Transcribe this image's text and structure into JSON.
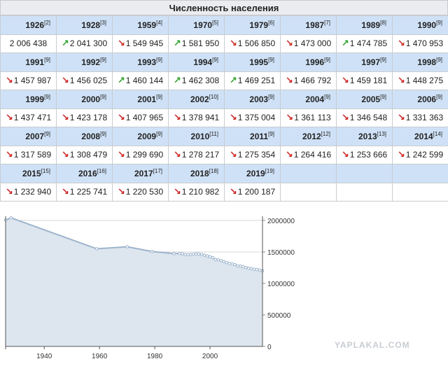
{
  "title": "Численность населения",
  "rows": [
    [
      {
        "year": "1926",
        "ref": "[2]",
        "arrow": "",
        "value": "2 006 438"
      },
      {
        "year": "1928",
        "ref": "[3]",
        "arrow": "up",
        "value": "2 041 300"
      },
      {
        "year": "1959",
        "ref": "[4]",
        "arrow": "down",
        "value": "1 549 945"
      },
      {
        "year": "1970",
        "ref": "[5]",
        "arrow": "up",
        "value": "1 581 950"
      },
      {
        "year": "1979",
        "ref": "[6]",
        "arrow": "down",
        "value": "1 506 850"
      },
      {
        "year": "1987",
        "ref": "[7]",
        "arrow": "down",
        "value": "1 473 000"
      },
      {
        "year": "1989",
        "ref": "[8]",
        "arrow": "up",
        "value": "1 474 785"
      },
      {
        "year": "1990",
        "ref": "[9]",
        "arrow": "down",
        "value": "1 470 953"
      }
    ],
    [
      {
        "year": "1991",
        "ref": "[9]",
        "arrow": "down",
        "value": "1 457 987"
      },
      {
        "year": "1992",
        "ref": "[9]",
        "arrow": "down",
        "value": "1 456 025"
      },
      {
        "year": "1993",
        "ref": "[9]",
        "arrow": "up",
        "value": "1 460 144"
      },
      {
        "year": "1994",
        "ref": "[9]",
        "arrow": "up",
        "value": "1 462 308"
      },
      {
        "year": "1995",
        "ref": "[9]",
        "arrow": "up",
        "value": "1 469 251"
      },
      {
        "year": "1996",
        "ref": "[9]",
        "arrow": "down",
        "value": "1 466 792"
      },
      {
        "year": "1997",
        "ref": "[9]",
        "arrow": "down",
        "value": "1 459 181"
      },
      {
        "year": "1998",
        "ref": "[9]",
        "arrow": "down",
        "value": "1 448 275"
      }
    ],
    [
      {
        "year": "1999",
        "ref": "[9]",
        "arrow": "down",
        "value": "1 437 471"
      },
      {
        "year": "2000",
        "ref": "[9]",
        "arrow": "down",
        "value": "1 423 178"
      },
      {
        "year": "2001",
        "ref": "[9]",
        "arrow": "down",
        "value": "1 407 965"
      },
      {
        "year": "2002",
        "ref": "[10]",
        "arrow": "down",
        "value": "1 378 941"
      },
      {
        "year": "2003",
        "ref": "[9]",
        "arrow": "down",
        "value": "1 375 004"
      },
      {
        "year": "2004",
        "ref": "[9]",
        "arrow": "down",
        "value": "1 361 113"
      },
      {
        "year": "2005",
        "ref": "[9]",
        "arrow": "down",
        "value": "1 346 548"
      },
      {
        "year": "2006",
        "ref": "[9]",
        "arrow": "down",
        "value": "1 331 363"
      }
    ],
    [
      {
        "year": "2007",
        "ref": "[9]",
        "arrow": "down",
        "value": "1 317 589"
      },
      {
        "year": "2008",
        "ref": "[9]",
        "arrow": "down",
        "value": "1 308 479"
      },
      {
        "year": "2009",
        "ref": "[9]",
        "arrow": "down",
        "value": "1 299 690"
      },
      {
        "year": "2010",
        "ref": "[11]",
        "arrow": "down",
        "value": "1 278 217"
      },
      {
        "year": "2011",
        "ref": "[9]",
        "arrow": "down",
        "value": "1 275 354"
      },
      {
        "year": "2012",
        "ref": "[12]",
        "arrow": "down",
        "value": "1 264 416"
      },
      {
        "year": "2013",
        "ref": "[13]",
        "arrow": "down",
        "value": "1 253 666"
      },
      {
        "year": "2014",
        "ref": "[14]",
        "arrow": "down",
        "value": "1 242 599"
      }
    ],
    [
      {
        "year": "2015",
        "ref": "[15]",
        "arrow": "down",
        "value": "1 232 940"
      },
      {
        "year": "2016",
        "ref": "[16]",
        "arrow": "down",
        "value": "1 225 741"
      },
      {
        "year": "2017",
        "ref": "[17]",
        "arrow": "down",
        "value": "1 220 530"
      },
      {
        "year": "2018",
        "ref": "[18]",
        "arrow": "down",
        "value": "1 210 982"
      },
      {
        "year": "2019",
        "ref": "[19]",
        "arrow": "down",
        "value": "1 200 187"
      },
      {
        "year": "",
        "ref": "",
        "arrow": "",
        "value": ""
      },
      {
        "year": "",
        "ref": "",
        "arrow": "",
        "value": ""
      },
      {
        "year": "",
        "ref": "",
        "arrow": "",
        "value": ""
      }
    ]
  ],
  "colors": {
    "header_bg": "#cfe1f6",
    "arrow_down": "#cc2222",
    "arrow_up": "#2aa02a",
    "area_fill": "#dde6ef",
    "line": "#9db4cc"
  },
  "watermark": "YAPLAKAL.COM",
  "chart_data": {
    "type": "area",
    "title": "",
    "xlabel": "",
    "ylabel": "",
    "x": [
      1926,
      1928,
      1959,
      1970,
      1979,
      1987,
      1989,
      1990,
      1991,
      1992,
      1993,
      1994,
      1995,
      1996,
      1997,
      1998,
      1999,
      2000,
      2001,
      2002,
      2003,
      2004,
      2005,
      2006,
      2007,
      2008,
      2009,
      2010,
      2011,
      2012,
      2013,
      2014,
      2015,
      2016,
      2017,
      2018,
      2019
    ],
    "values": [
      2006438,
      2041300,
      1549945,
      1581950,
      1506850,
      1473000,
      1474785,
      1470953,
      1457987,
      1456025,
      1460144,
      1462308,
      1469251,
      1466792,
      1459181,
      1448275,
      1437471,
      1423178,
      1407965,
      1378941,
      1375004,
      1361113,
      1346548,
      1331363,
      1317589,
      1308479,
      1299690,
      1278217,
      1275354,
      1264416,
      1253666,
      1242599,
      1232940,
      1225741,
      1220530,
      1210982,
      1200187
    ],
    "xlim": [
      1926,
      2019
    ],
    "ylim": [
      0,
      2000000
    ],
    "x_ticks": [
      "1940",
      "1960",
      "1980",
      "2000"
    ],
    "y_ticks": [
      "0",
      "500000",
      "1000000",
      "1500000",
      "2000000"
    ],
    "grid": true,
    "y_axis_side": "right"
  }
}
